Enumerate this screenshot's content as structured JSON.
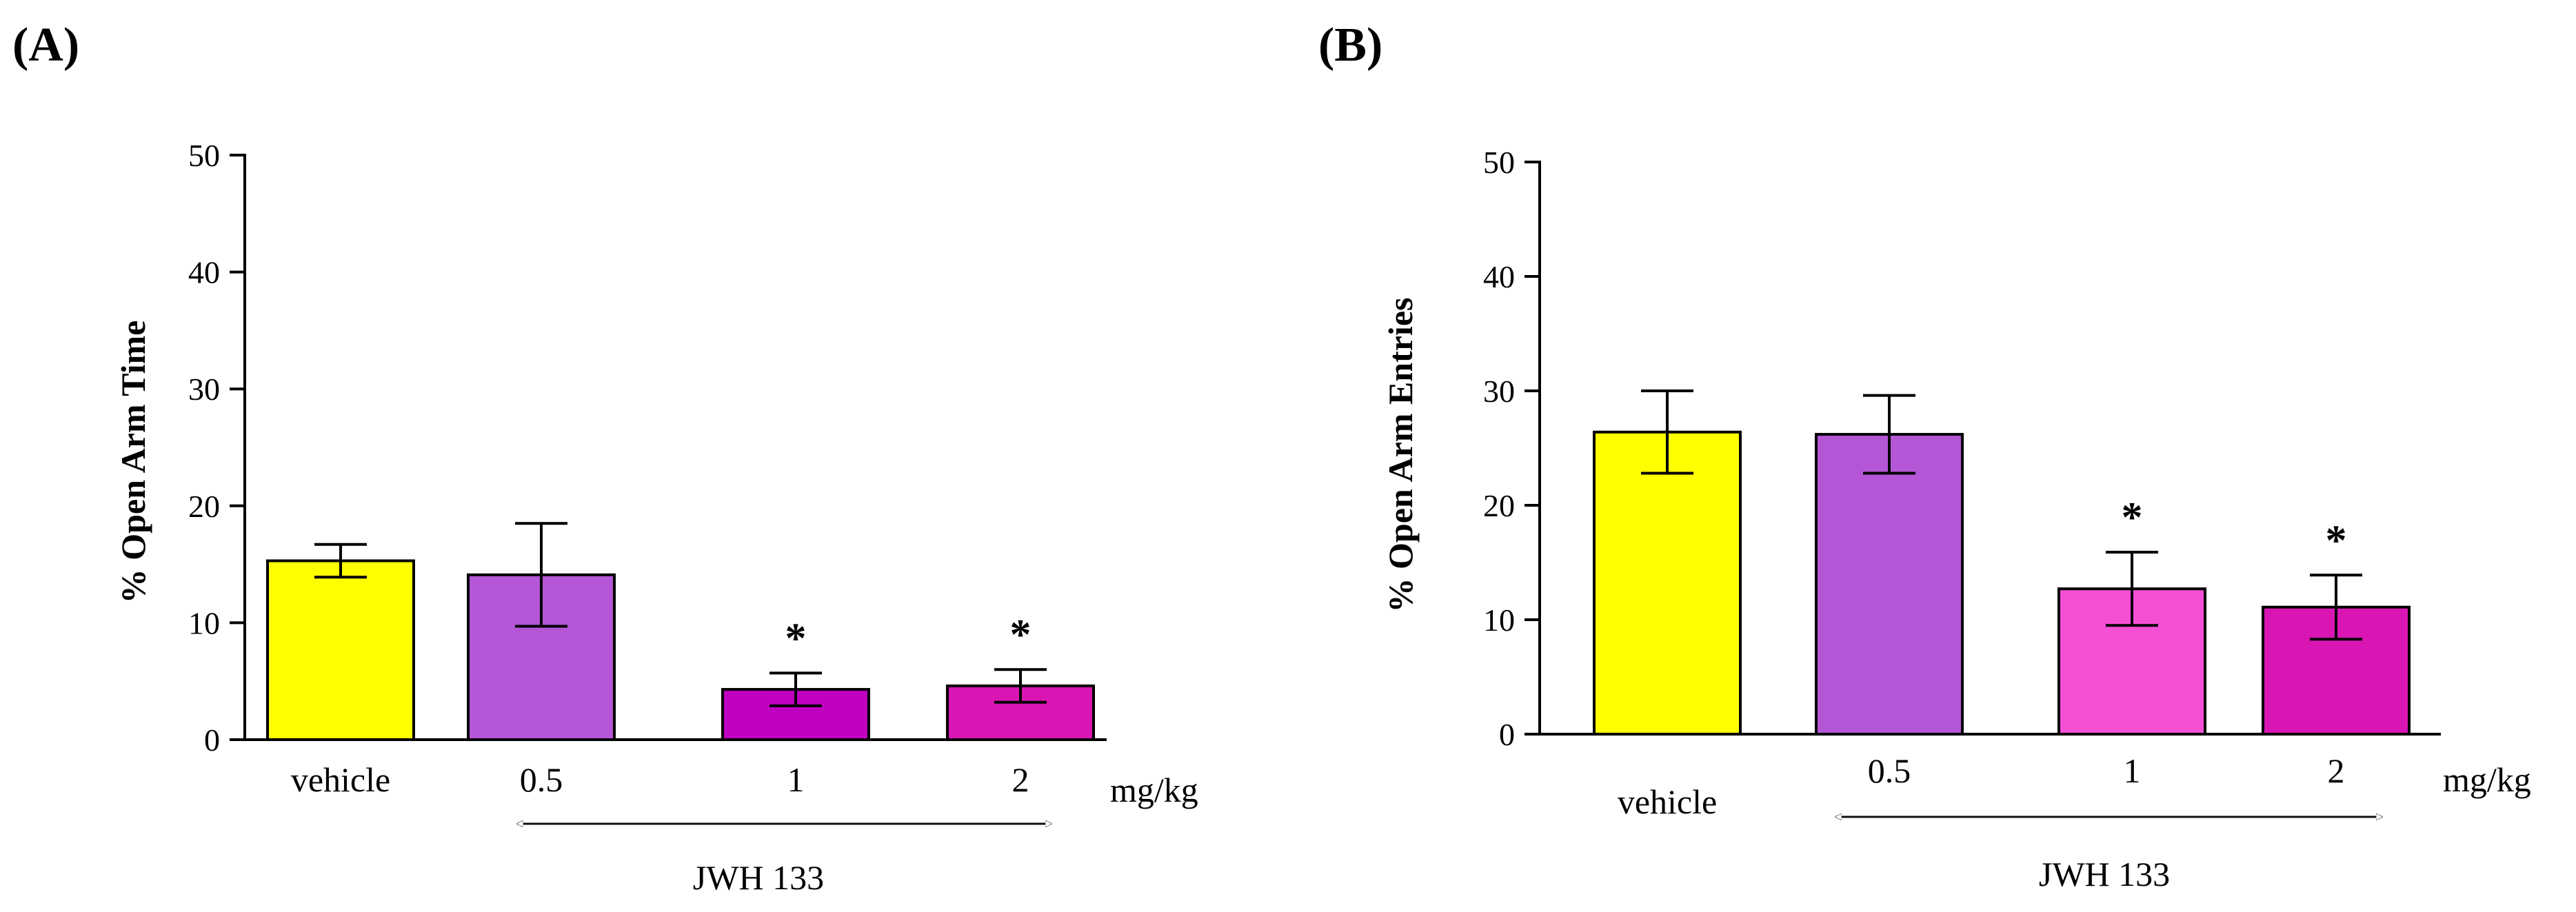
{
  "chart_data": [
    {
      "type": "bar",
      "panel_label": "(A)",
      "ylabel": "%   Open Arm Time",
      "xlabel_unit": "mg/kg",
      "group_label": "JWH 133",
      "categories": [
        "vehicle",
        "0.5",
        "1",
        "2"
      ],
      "values": [
        15.3,
        14.1,
        4.3,
        4.6
      ],
      "errors": [
        1.4,
        4.4,
        1.4,
        1.4
      ],
      "significance": [
        "",
        "",
        "*",
        "*"
      ],
      "colors": [
        "#ffff00",
        "#b456d6",
        "#c000c0",
        "#d916b4"
      ],
      "ylim": [
        0,
        50
      ],
      "yticks": [
        0,
        10,
        20,
        30,
        40,
        50
      ]
    },
    {
      "type": "bar",
      "panel_label": "(B)",
      "ylabel": "% Open  Arm  Entries",
      "xlabel_unit": "mg/kg",
      "group_label": "JWH 133",
      "categories": [
        "vehicle",
        "0.5",
        "1",
        "2"
      ],
      "values": [
        26.4,
        26.2,
        12.7,
        11.1
      ],
      "errors": [
        3.6,
        3.4,
        3.2,
        2.8
      ],
      "significance": [
        "",
        "",
        "*",
        "*"
      ],
      "colors": [
        "#ffff00",
        "#b456d6",
        "#f54fd6",
        "#d916b4"
      ],
      "ylim": [
        0,
        50
      ],
      "yticks": [
        0,
        10,
        20,
        30,
        40,
        50
      ]
    }
  ]
}
